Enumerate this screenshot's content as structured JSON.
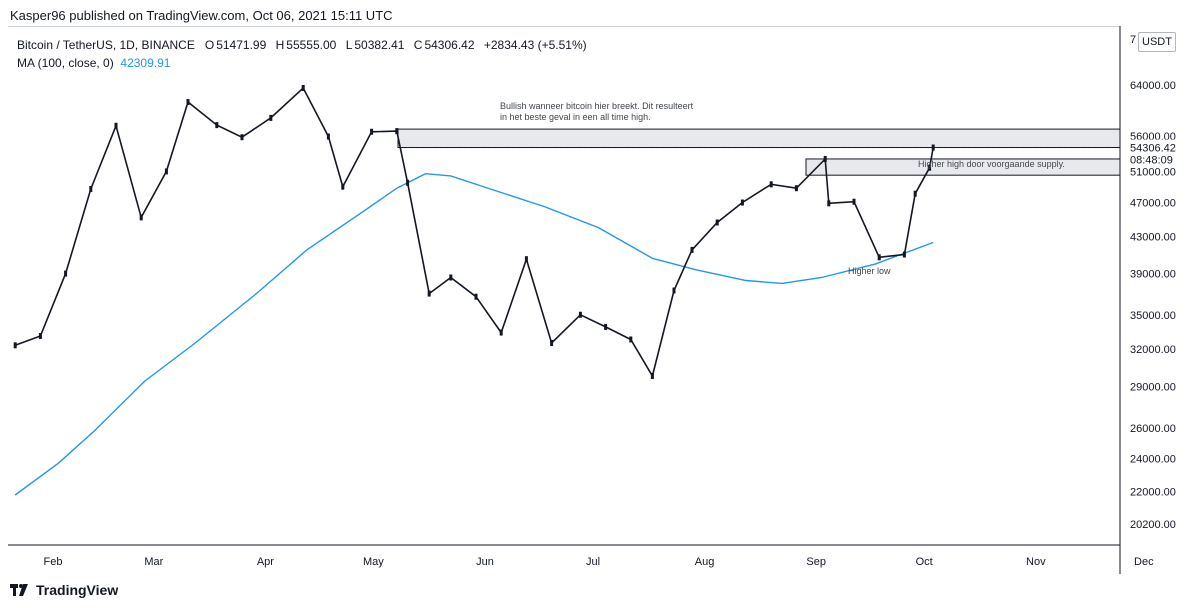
{
  "header": {
    "published_line": "Kasper96 published on TradingView.com, Oct 06, 2021 15:11 UTC"
  },
  "legend": {
    "symbol_line": "Bitcoin / TetherUS, 1D, BINANCE",
    "o_label": "O",
    "o_value": "51471.99",
    "h_label": "H",
    "h_value": "55555.00",
    "l_label": "L",
    "l_value": "50382.41",
    "c_label": "C",
    "c_value": "54306.42",
    "change": "+2834.43 (+5.51%)",
    "ma_label": "MA (100, close, 0)",
    "ma_value": "42309.91"
  },
  "currency_label": "USDT",
  "footer": {
    "brand": "TradingView"
  },
  "colors": {
    "candle": "#131722",
    "ma": "#2196f3",
    "zone_fill": "#e8e9ec",
    "axis_text": "#131722"
  },
  "chart_data": {
    "type": "line",
    "scale": "log",
    "x_labels": [
      "Feb",
      "Mar",
      "Apr",
      "May",
      "Jun",
      "Jul",
      "Aug",
      "Sep",
      "Oct",
      "Nov",
      "Dec"
    ],
    "y_ticks": [
      "64000.00",
      "56000.00",
      "51000.00",
      "47000.00",
      "43000.00",
      "39000.00",
      "35000.00",
      "32000.00",
      "29000.00",
      "26000.00",
      "24000.00",
      "22000.00",
      "20200.00"
    ],
    "y_top_partial": "7",
    "price_tag": "54306.42",
    "time_tag": "08:48:09",
    "series": [
      {
        "name": "MA (100, close, 0)",
        "points": [
          [
            "2021-01-24",
            21800
          ],
          [
            "2021-02-05",
            23700
          ],
          [
            "2021-02-15",
            25800
          ],
          [
            "2021-03-01",
            29400
          ],
          [
            "2021-03-15",
            32500
          ],
          [
            "2021-04-01",
            37000
          ],
          [
            "2021-04-15",
            41500
          ],
          [
            "2021-05-01",
            46000
          ],
          [
            "2021-05-10",
            48800
          ],
          [
            "2021-05-18",
            50700
          ],
          [
            "2021-05-25",
            50400
          ],
          [
            "2021-06-05",
            48700
          ],
          [
            "2021-06-20",
            46500
          ],
          [
            "2021-07-05",
            44000
          ],
          [
            "2021-07-20",
            40600
          ],
          [
            "2021-08-01",
            39400
          ],
          [
            "2021-08-15",
            38300
          ],
          [
            "2021-08-25",
            38000
          ],
          [
            "2021-09-05",
            38600
          ],
          [
            "2021-09-20",
            40000
          ],
          [
            "2021-10-06",
            42310
          ]
        ]
      },
      {
        "name": "Bitcoin / TetherUS daily close (approx.)",
        "points": [
          [
            "2021-01-24",
            32300
          ],
          [
            "2021-01-31",
            33100
          ],
          [
            "2021-02-07",
            39000
          ],
          [
            "2021-02-14",
            48700
          ],
          [
            "2021-02-21",
            57500
          ],
          [
            "2021-02-28",
            45200
          ],
          [
            "2021-03-07",
            51000
          ],
          [
            "2021-03-13",
            61200
          ],
          [
            "2021-03-21",
            57600
          ],
          [
            "2021-03-28",
            55800
          ],
          [
            "2021-04-05",
            58700
          ],
          [
            "2021-04-14",
            63500
          ],
          [
            "2021-04-21",
            55900
          ],
          [
            "2021-04-25",
            49000
          ],
          [
            "2021-05-03",
            56600
          ],
          [
            "2021-05-10",
            56700
          ],
          [
            "2021-05-13",
            49500
          ],
          [
            "2021-05-19",
            37000
          ],
          [
            "2021-05-25",
            38600
          ],
          [
            "2021-06-01",
            36700
          ],
          [
            "2021-06-08",
            33400
          ],
          [
            "2021-06-15",
            40500
          ],
          [
            "2021-06-22",
            32500
          ],
          [
            "2021-06-30",
            35000
          ],
          [
            "2021-07-07",
            33900
          ],
          [
            "2021-07-14",
            32800
          ],
          [
            "2021-07-20",
            29800
          ],
          [
            "2021-07-26",
            37300
          ],
          [
            "2021-07-31",
            41500
          ],
          [
            "2021-08-07",
            44600
          ],
          [
            "2021-08-14",
            47000
          ],
          [
            "2021-08-22",
            49300
          ],
          [
            "2021-08-29",
            48800
          ],
          [
            "2021-09-06",
            52700
          ],
          [
            "2021-09-07",
            46900
          ],
          [
            "2021-09-14",
            47100
          ],
          [
            "2021-09-21",
            40700
          ],
          [
            "2021-09-28",
            41000
          ],
          [
            "2021-10-01",
            48100
          ],
          [
            "2021-10-05",
            51500
          ],
          [
            "2021-10-06",
            54306.42
          ]
        ]
      }
    ],
    "zones": [
      {
        "from": 54306.42,
        "to": 57000
      },
      {
        "from": 50500,
        "to": 52700
      }
    ],
    "annotations": [
      {
        "lines": [
          "Bullish wanneer bitcoin hier breekt. Dit resulteert",
          "in het beste geval in een all time high."
        ]
      },
      {
        "lines": [
          "Higher high door voorgaande supply."
        ]
      },
      {
        "lines": [
          "Higher low"
        ]
      }
    ]
  }
}
